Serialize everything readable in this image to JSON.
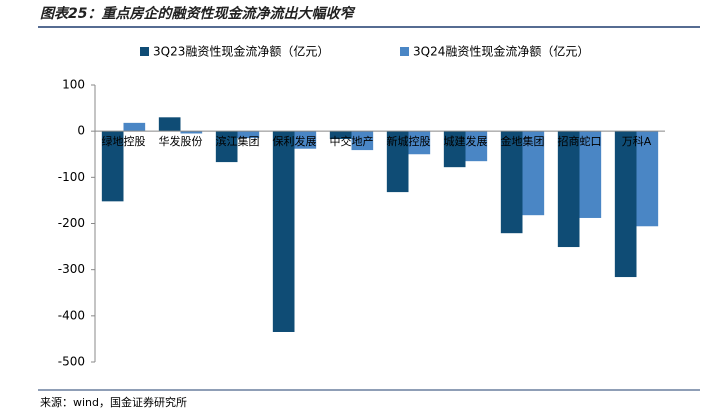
{
  "chart_data": {
    "type": "bar",
    "title": "图表25：重点房企的融资性现金流净流出大幅收窄",
    "source": "来源：wind，国金证券研究所",
    "categories": [
      "绿地控股",
      "华发股份",
      "滨江集团",
      "保利发展",
      "中交地产",
      "新城控股",
      "城建发展",
      "金地集团",
      "招商蛇口",
      "万科A"
    ],
    "series": [
      {
        "name": "3Q23融资性现金流净额（亿元）",
        "color": "#0f4c75",
        "values": [
          -152,
          30,
          -67,
          -435,
          -17,
          -132,
          -78,
          -221,
          -251,
          -316
        ]
      },
      {
        "name": "3Q24融资性现金流净额（亿元）",
        "color": "#4a86c5",
        "values": [
          18,
          -5,
          -15,
          -38,
          -41,
          -50,
          -65,
          -182,
          -188,
          -206
        ]
      }
    ],
    "ylim": [
      -500,
      100
    ],
    "yticks": [
      -500,
      -400,
      -300,
      -200,
      -100,
      0,
      100
    ],
    "grid": false
  }
}
